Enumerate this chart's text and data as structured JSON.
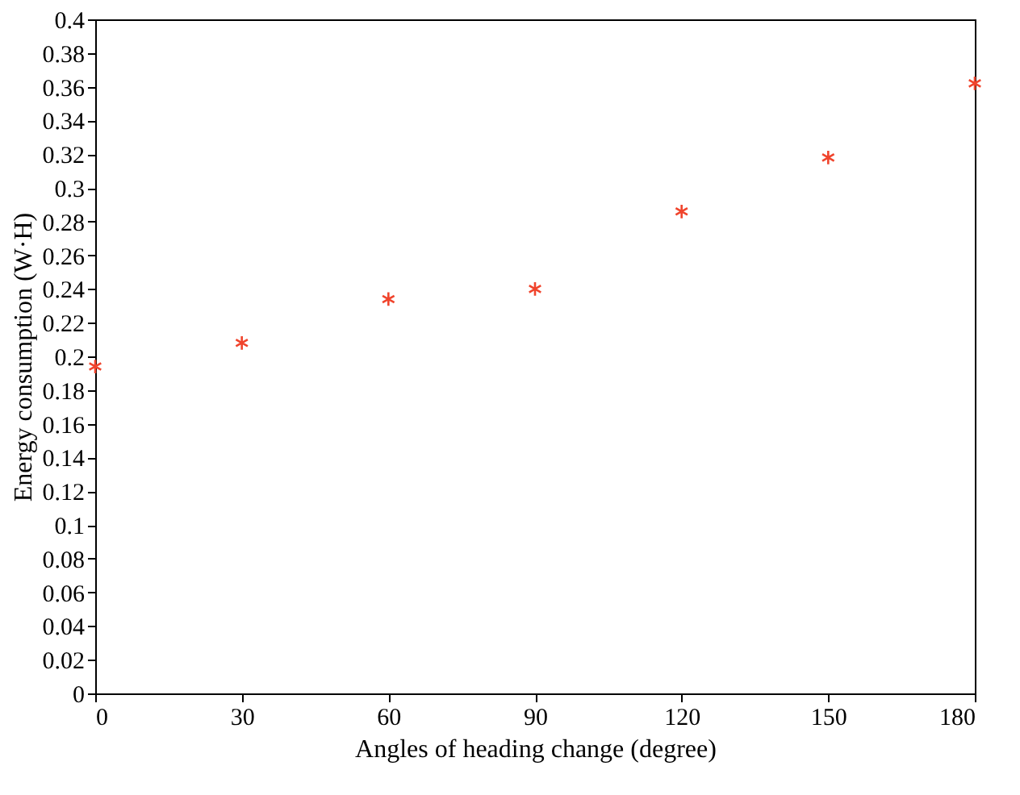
{
  "chart_data": {
    "type": "scatter",
    "xlabel": "Angles of heading change (degree)",
    "ylabel": "Energy consumption (W·H)",
    "x": [
      0,
      30,
      60,
      90,
      120,
      150,
      180
    ],
    "series": [
      {
        "color": "#f0442c",
        "values": [
          0.194,
          0.208,
          0.234,
          0.24,
          0.286,
          0.318,
          0.362
        ]
      }
    ],
    "xlim": [
      0,
      180
    ],
    "xticks": [
      0,
      30,
      60,
      90,
      120,
      150,
      180
    ],
    "ylim": [
      0,
      0.4
    ],
    "yticks": [
      0,
      0.02,
      0.04,
      0.06,
      0.08,
      0.1,
      0.12,
      0.14,
      0.16,
      0.18,
      0.2,
      0.22,
      0.24,
      0.26,
      0.28,
      0.3,
      0.32,
      0.34,
      0.36,
      0.38,
      0.4
    ],
    "grid": false,
    "legend": false,
    "marker": "cross"
  }
}
